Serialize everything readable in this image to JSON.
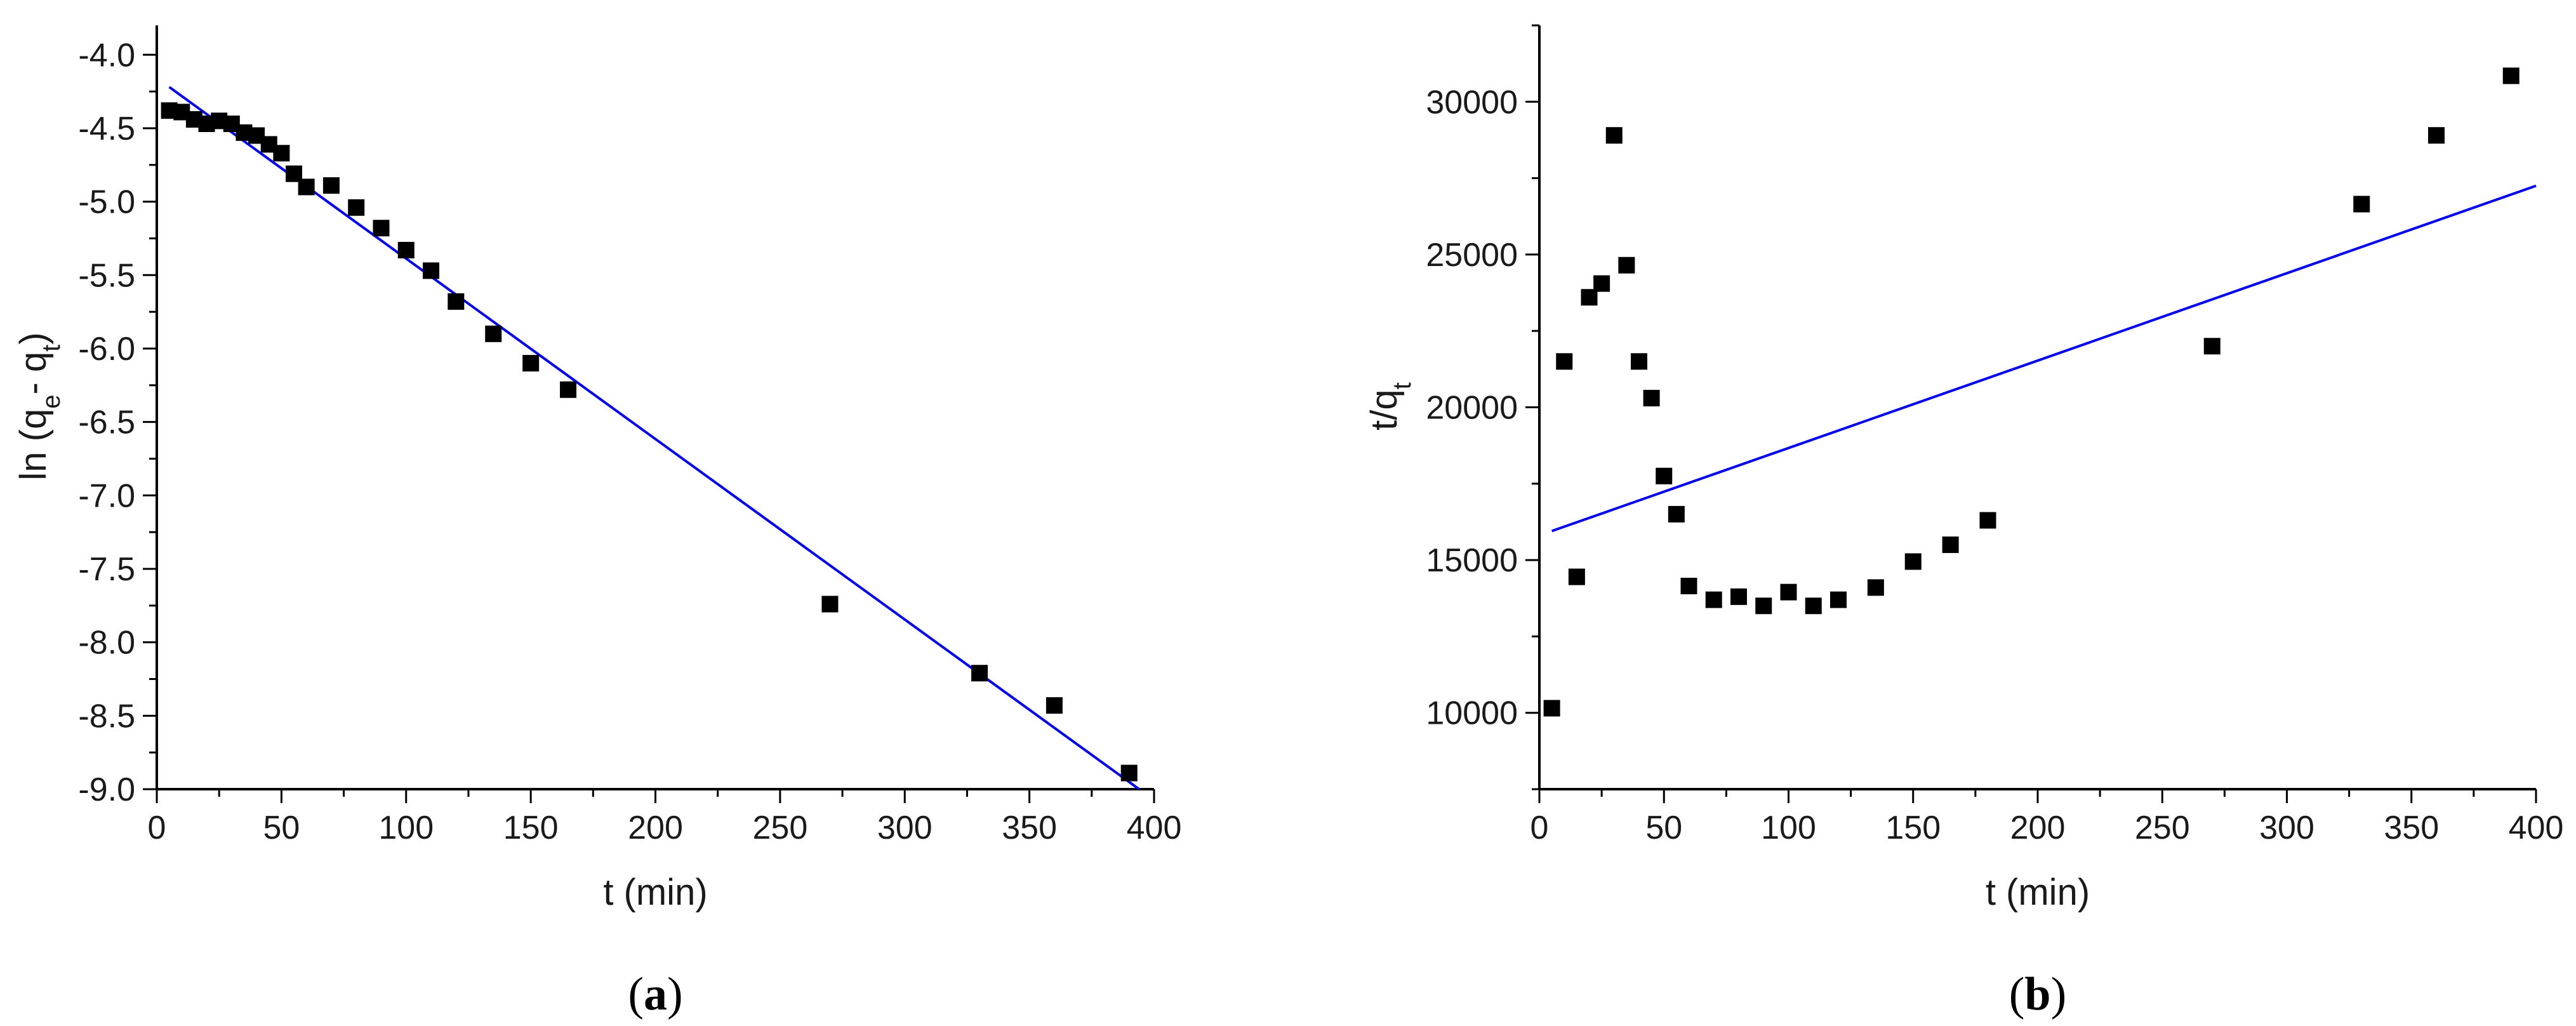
{
  "chart_data": [
    {
      "type": "scatter",
      "panel_label": "(a)",
      "xlabel": "t (min)",
      "ylabel": {
        "base": "ln (q",
        "sub1": "e",
        "mid": "- q",
        "sub2": "t",
        "end": ")"
      },
      "xlim": [
        0,
        400
      ],
      "ylim": [
        -9.0,
        -3.8
      ],
      "xticks": [
        0,
        50,
        100,
        150,
        200,
        250,
        300,
        350,
        400
      ],
      "yticks": [
        -9.0,
        -8.5,
        -8.0,
        -7.5,
        -7.0,
        -6.5,
        -6.0,
        -5.5,
        -5.0,
        -4.5,
        -4.0
      ],
      "xtick_labels": [
        "0",
        "50",
        "100",
        "150",
        "200",
        "250",
        "300",
        "350",
        "400"
      ],
      "ytick_labels": [
        "-9.0",
        "-8.5",
        "-8.0",
        "-7.5",
        "-7.0",
        "-6.5",
        "-6.0",
        "-5.5",
        "-5.0",
        "-4.5",
        "-4.0"
      ],
      "points": {
        "x": [
          5,
          10,
          15,
          20,
          25,
          30,
          35,
          40,
          45,
          50,
          55,
          60,
          70,
          80,
          90,
          100,
          110,
          120,
          135,
          150,
          165,
          270,
          330,
          360,
          390
        ],
        "y": [
          -4.38,
          -4.39,
          -4.44,
          -4.47,
          -4.45,
          -4.47,
          -4.53,
          -4.55,
          -4.61,
          -4.67,
          -4.81,
          -4.9,
          -4.89,
          -5.04,
          -5.18,
          -5.33,
          -5.47,
          -5.68,
          -5.9,
          -6.1,
          -6.28,
          -7.74,
          -8.21,
          -8.43,
          -8.89
        ]
      },
      "fit_line": {
        "x": [
          5,
          394
        ],
        "y": [
          -4.22,
          -9.0
        ]
      },
      "marker_color": "#000000",
      "line_color": "#0000ee"
    },
    {
      "type": "scatter",
      "panel_label": "(b)",
      "xlabel": "t (min)",
      "ylabel": {
        "base": "t/q",
        "sub1": "t"
      },
      "xlim": [
        0,
        400
      ],
      "ylim": [
        7500,
        32500
      ],
      "xticks": [
        0,
        50,
        100,
        150,
        200,
        250,
        300,
        350,
        400
      ],
      "yticks": [
        10000,
        15000,
        20000,
        25000,
        30000
      ],
      "xtick_labels": [
        "0",
        "50",
        "100",
        "150",
        "200",
        "250",
        "300",
        "350",
        "400"
      ],
      "ytick_labels": [
        "10000",
        "15000",
        "20000",
        "25000",
        "30000"
      ],
      "points": {
        "x": [
          5,
          10,
          15,
          20,
          25,
          30,
          35,
          40,
          45,
          50,
          55,
          60,
          70,
          80,
          90,
          100,
          110,
          120,
          135,
          150,
          165,
          180,
          270,
          330,
          360,
          390
        ],
        "y": [
          10150,
          21500,
          14450,
          23600,
          24050,
          28900,
          24650,
          21500,
          20300,
          17750,
          16500,
          14150,
          13700,
          13800,
          13500,
          13950,
          13500,
          13700,
          14100,
          14950,
          15500,
          16300,
          22000,
          26650,
          28900,
          30850
        ]
      },
      "fit_line": {
        "x": [
          5,
          400
        ],
        "y": [
          15950,
          27250
        ]
      },
      "marker_color": "#000000",
      "line_color": "#0000ee"
    }
  ]
}
